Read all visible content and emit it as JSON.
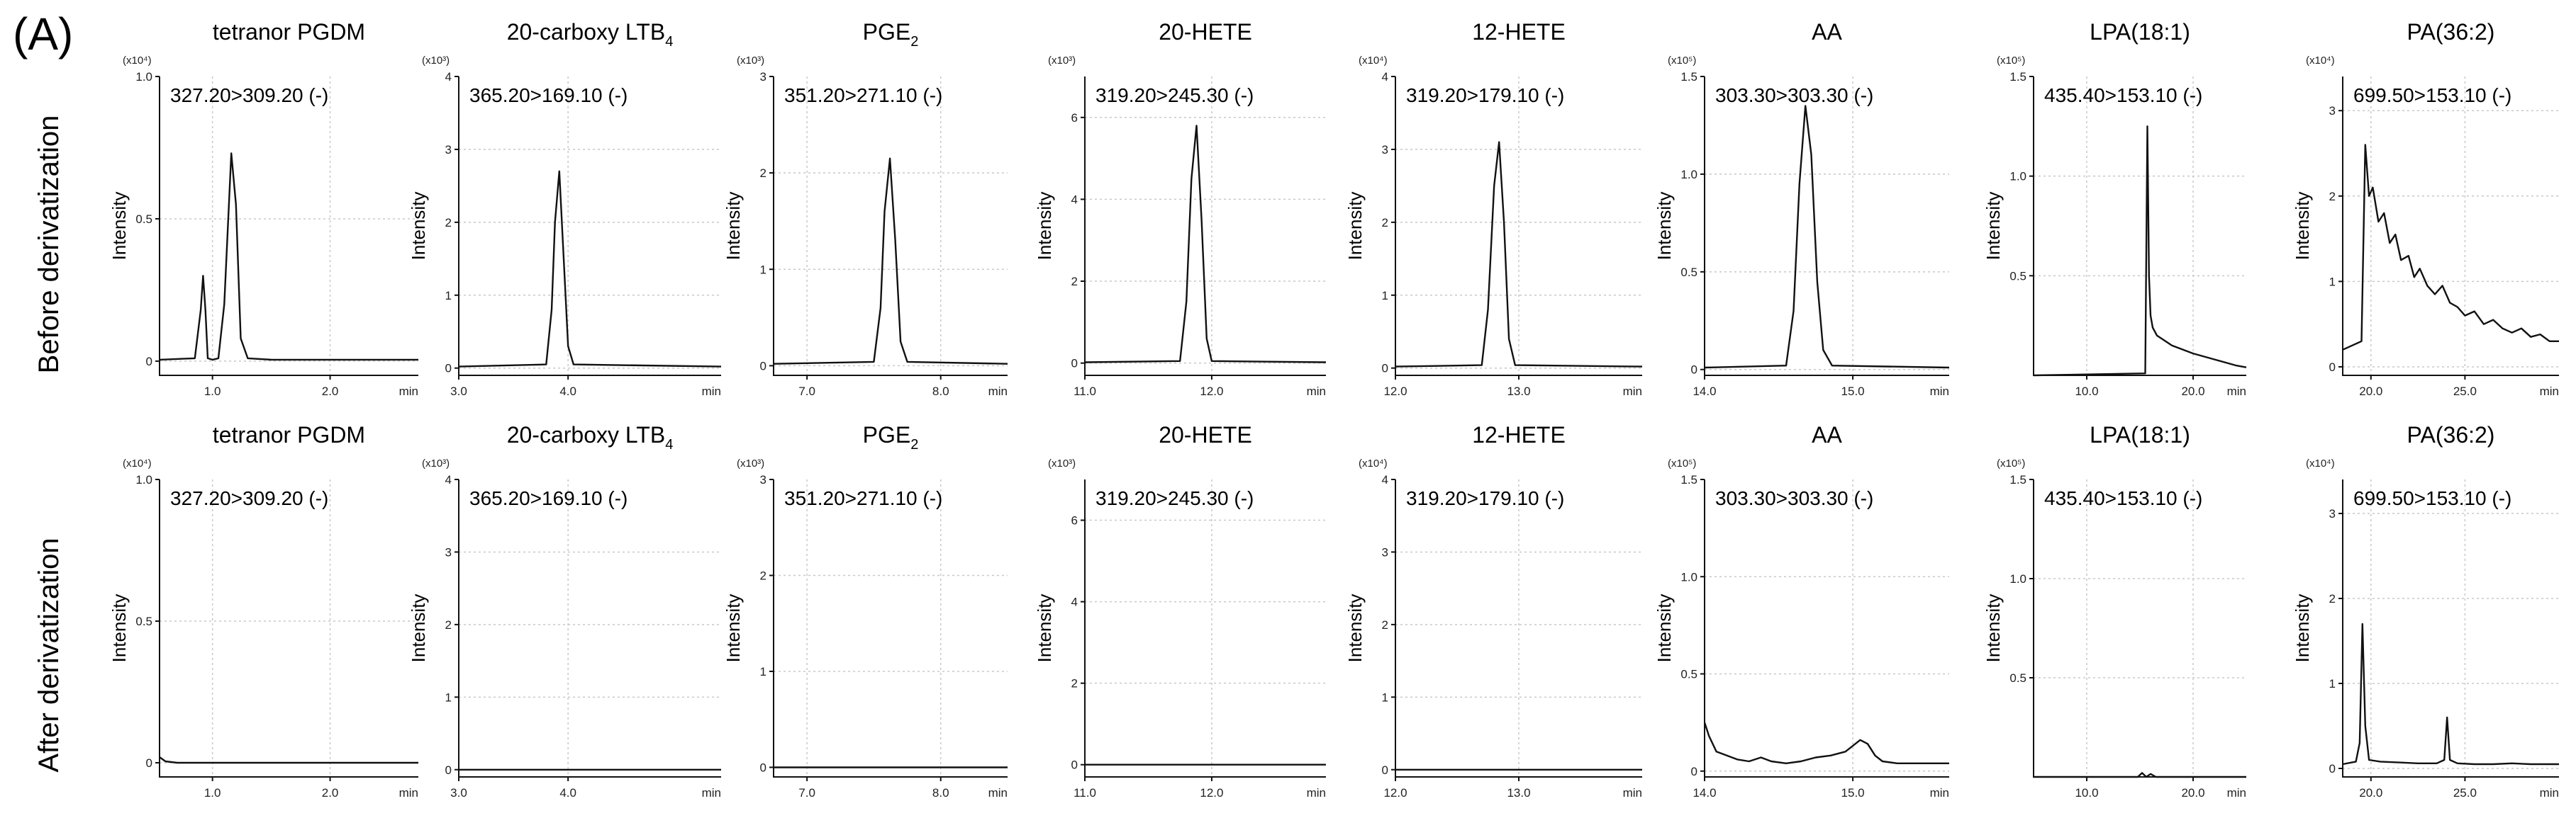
{
  "panel_label": "(A)",
  "row_labels": [
    "Before derivatization",
    "After derivatization"
  ],
  "chart_data": [
    {
      "type": "line",
      "row": 0,
      "title": "tetranor PGDM",
      "title_sub": "",
      "mrm": "327.20>309.20 (-)",
      "ylabel": "Intensity",
      "multiplier": "(x10⁴)",
      "xunit": "min",
      "x_ticks": [
        {
          "v": 1.0,
          "label": "1.0"
        },
        {
          "v": 2.0,
          "label": "2.0"
        }
      ],
      "y_ticks": [
        {
          "v": 0,
          "label": "0"
        },
        {
          "v": 0.5,
          "label": "0.5"
        },
        {
          "v": 1.0,
          "label": "1.0"
        }
      ],
      "xlim": [
        0.55,
        2.75
      ],
      "ylim": [
        -0.05,
        1.0
      ],
      "series": [
        {
          "x": [
            0.55,
            0.85,
            0.9,
            0.92,
            0.94,
            0.96,
            1.0,
            1.05,
            1.1,
            1.16,
            1.2,
            1.24,
            1.3,
            1.5,
            2.75
          ],
          "y": [
            0.005,
            0.01,
            0.18,
            0.3,
            0.18,
            0.01,
            0.005,
            0.01,
            0.2,
            0.73,
            0.55,
            0.08,
            0.01,
            0.005,
            0.005
          ]
        }
      ]
    },
    {
      "type": "line",
      "row": 0,
      "title": "20-carboxy LTB",
      "title_sub": "4",
      "mrm": "365.20>169.10 (-)",
      "ylabel": "Intensity",
      "multiplier": "(x10³)",
      "xunit": "min",
      "x_ticks": [
        {
          "v": 3.0,
          "label": "3.0"
        },
        {
          "v": 4.0,
          "label": "4.0"
        }
      ],
      "y_ticks": [
        {
          "v": 0,
          "label": "0"
        },
        {
          "v": 1,
          "label": "1"
        },
        {
          "v": 2,
          "label": "2"
        },
        {
          "v": 3,
          "label": "3"
        },
        {
          "v": 4,
          "label": "4"
        }
      ],
      "xlim": [
        3.0,
        5.4
      ],
      "ylim": [
        -0.1,
        4.0
      ],
      "series": [
        {
          "x": [
            3.0,
            3.8,
            3.85,
            3.88,
            3.92,
            3.96,
            4.0,
            4.05,
            5.4
          ],
          "y": [
            0.02,
            0.05,
            0.8,
            2.0,
            2.7,
            1.5,
            0.3,
            0.05,
            0.02
          ]
        }
      ]
    },
    {
      "type": "line",
      "row": 0,
      "title": "PGE",
      "title_sub": "2",
      "mrm": "351.20>271.10 (-)",
      "ylabel": "Intensity",
      "multiplier": "(x10³)",
      "xunit": "min",
      "x_ticks": [
        {
          "v": 7.0,
          "label": "7.0"
        },
        {
          "v": 8.0,
          "label": "8.0"
        }
      ],
      "y_ticks": [
        {
          "v": 0,
          "label": "0"
        },
        {
          "v": 1,
          "label": "1"
        },
        {
          "v": 2,
          "label": "2"
        },
        {
          "v": 3,
          "label": "3"
        }
      ],
      "xlim": [
        6.75,
        8.5
      ],
      "ylim": [
        -0.1,
        3.0
      ],
      "series": [
        {
          "x": [
            6.75,
            7.5,
            7.55,
            7.58,
            7.62,
            7.66,
            7.7,
            7.75,
            8.5
          ],
          "y": [
            0.02,
            0.04,
            0.6,
            1.6,
            2.15,
            1.3,
            0.25,
            0.04,
            0.02
          ]
        }
      ]
    },
    {
      "type": "line",
      "row": 0,
      "title": "20-HETE",
      "title_sub": "",
      "mrm": "319.20>245.30 (-)",
      "ylabel": "Intensity",
      "multiplier": "(x10³)",
      "xunit": "min",
      "x_ticks": [
        {
          "v": 11.0,
          "label": "11.0"
        },
        {
          "v": 12.0,
          "label": "12.0"
        }
      ],
      "y_ticks": [
        {
          "v": 0,
          "label": "0"
        },
        {
          "v": 2,
          "label": "2"
        },
        {
          "v": 4,
          "label": "4"
        },
        {
          "v": 6,
          "label": "6"
        }
      ],
      "xlim": [
        11.0,
        12.9
      ],
      "ylim": [
        -0.3,
        7.0
      ],
      "series": [
        {
          "x": [
            11.0,
            11.75,
            11.8,
            11.84,
            11.88,
            11.92,
            11.96,
            12.0,
            12.9
          ],
          "y": [
            0.02,
            0.05,
            1.5,
            4.5,
            5.8,
            3.5,
            0.6,
            0.05,
            0.02
          ]
        }
      ]
    },
    {
      "type": "line",
      "row": 0,
      "title": "12-HETE",
      "title_sub": "",
      "mrm": "319.20>179.10 (-)",
      "ylabel": "Intensity",
      "multiplier": "(x10⁴)",
      "xunit": "min",
      "x_ticks": [
        {
          "v": 12.0,
          "label": "12.0"
        },
        {
          "v": 13.0,
          "label": "13.0"
        }
      ],
      "y_ticks": [
        {
          "v": 0,
          "label": "0"
        },
        {
          "v": 1,
          "label": "1"
        },
        {
          "v": 2,
          "label": "2"
        },
        {
          "v": 3,
          "label": "3"
        },
        {
          "v": 4,
          "label": "4"
        }
      ],
      "xlim": [
        12.0,
        14.0
      ],
      "ylim": [
        -0.1,
        4.0
      ],
      "series": [
        {
          "x": [
            12.0,
            12.7,
            12.75,
            12.8,
            12.84,
            12.88,
            12.92,
            12.97,
            14.0
          ],
          "y": [
            0.02,
            0.04,
            0.8,
            2.5,
            3.1,
            2.0,
            0.4,
            0.04,
            0.02
          ]
        }
      ]
    },
    {
      "type": "line",
      "row": 0,
      "title": "AA",
      "title_sub": "",
      "mrm": "303.30>303.30 (-)",
      "ylabel": "Intensity",
      "multiplier": "(x10⁵)",
      "xunit": "min",
      "x_ticks": [
        {
          "v": 14.0,
          "label": "14.0"
        },
        {
          "v": 15.0,
          "label": "15.0"
        }
      ],
      "y_ticks": [
        {
          "v": 0,
          "label": "0"
        },
        {
          "v": 0.5,
          "label": "0.5"
        },
        {
          "v": 1.0,
          "label": "1.0"
        },
        {
          "v": 1.5,
          "label": "1.5"
        }
      ],
      "xlim": [
        14.0,
        15.65
      ],
      "ylim": [
        -0.03,
        1.5
      ],
      "series": [
        {
          "x": [
            14.0,
            14.55,
            14.6,
            14.64,
            14.68,
            14.72,
            14.76,
            14.8,
            14.86,
            15.65
          ],
          "y": [
            0.01,
            0.02,
            0.3,
            0.95,
            1.35,
            1.1,
            0.45,
            0.1,
            0.02,
            0.01
          ]
        }
      ]
    },
    {
      "type": "line",
      "row": 0,
      "title": "LPA(18:1)",
      "title_sub": "",
      "mrm": "435.40>153.10 (-)",
      "ylabel": "Intensity",
      "multiplier": "(x10⁵)",
      "xunit": "min",
      "x_ticks": [
        {
          "v": 10.0,
          "label": "10.0"
        },
        {
          "v": 20.0,
          "label": "20.0"
        }
      ],
      "y_ticks": [
        {
          "v": 0.5,
          "label": "0.5"
        },
        {
          "v": 1.0,
          "label": "1.0"
        },
        {
          "v": 1.5,
          "label": "1.5"
        }
      ],
      "xlim": [
        5.0,
        25.0
      ],
      "ylim": [
        0.0,
        1.5
      ],
      "series": [
        {
          "x": [
            5.0,
            15.5,
            15.7,
            15.85,
            16.0,
            16.2,
            16.6,
            18.0,
            20.0,
            22.0,
            24.0,
            25.0
          ],
          "y": [
            0.0,
            0.01,
            1.25,
            0.5,
            0.3,
            0.24,
            0.2,
            0.15,
            0.11,
            0.08,
            0.05,
            0.04
          ]
        }
      ]
    },
    {
      "type": "line",
      "row": 0,
      "title": "PA(36:2)",
      "title_sub": "",
      "mrm": "699.50>153.10 (-)",
      "ylabel": "Intensity",
      "multiplier": "(x10⁴)",
      "xunit": "min",
      "x_ticks": [
        {
          "v": 20.0,
          "label": "20.0"
        },
        {
          "v": 25.0,
          "label": "25.0"
        }
      ],
      "y_ticks": [
        {
          "v": 0,
          "label": "0"
        },
        {
          "v": 1,
          "label": "1"
        },
        {
          "v": 2,
          "label": "2"
        },
        {
          "v": 3,
          "label": "3"
        }
      ],
      "xlim": [
        18.5,
        30.0
      ],
      "ylim": [
        -0.1,
        3.4
      ],
      "series": [
        {
          "x": [
            18.5,
            19.0,
            19.5,
            19.7,
            19.9,
            20.1,
            20.4,
            20.7,
            21.0,
            21.3,
            21.6,
            22.0,
            22.3,
            22.6,
            23.0,
            23.4,
            23.8,
            24.2,
            24.6,
            25.0,
            25.5,
            26.0,
            26.5,
            27.0,
            27.5,
            28.0,
            28.5,
            29.0,
            29.5,
            30.0
          ],
          "y": [
            0.2,
            0.25,
            0.3,
            2.6,
            2.0,
            2.1,
            1.7,
            1.8,
            1.45,
            1.55,
            1.25,
            1.3,
            1.05,
            1.15,
            0.95,
            0.85,
            0.95,
            0.75,
            0.7,
            0.6,
            0.65,
            0.5,
            0.55,
            0.45,
            0.4,
            0.45,
            0.35,
            0.38,
            0.3,
            0.3
          ]
        }
      ]
    },
    {
      "type": "line",
      "row": 1,
      "title": "tetranor PGDM",
      "title_sub": "",
      "mrm": "327.20>309.20 (-)",
      "ylabel": "Intensity",
      "multiplier": "(x10⁴)",
      "xunit": "min",
      "x_ticks": [
        {
          "v": 1.0,
          "label": "1.0"
        },
        {
          "v": 2.0,
          "label": "2.0"
        }
      ],
      "y_ticks": [
        {
          "v": 0,
          "label": "0"
        },
        {
          "v": 0.5,
          "label": "0.5"
        },
        {
          "v": 1.0,
          "label": "1.0"
        }
      ],
      "xlim": [
        0.55,
        2.75
      ],
      "ylim": [
        -0.05,
        1.0
      ],
      "series": [
        {
          "x": [
            0.55,
            0.6,
            0.7,
            2.75
          ],
          "y": [
            0.02,
            0.005,
            0.0,
            0.0
          ]
        }
      ]
    },
    {
      "type": "line",
      "row": 1,
      "title": "20-carboxy LTB",
      "title_sub": "4",
      "mrm": "365.20>169.10 (-)",
      "ylabel": "Intensity",
      "multiplier": "(x10³)",
      "xunit": "min",
      "x_ticks": [
        {
          "v": 3.0,
          "label": "3.0"
        },
        {
          "v": 4.0,
          "label": "4.0"
        }
      ],
      "y_ticks": [
        {
          "v": 0,
          "label": "0"
        },
        {
          "v": 1,
          "label": "1"
        },
        {
          "v": 2,
          "label": "2"
        },
        {
          "v": 3,
          "label": "3"
        },
        {
          "v": 4,
          "label": "4"
        }
      ],
      "xlim": [
        3.0,
        5.4
      ],
      "ylim": [
        -0.1,
        4.0
      ],
      "series": [
        {
          "x": [
            3.0,
            5.4
          ],
          "y": [
            0.0,
            0.0
          ]
        }
      ]
    },
    {
      "type": "line",
      "row": 1,
      "title": "PGE",
      "title_sub": "2",
      "mrm": "351.20>271.10 (-)",
      "ylabel": "Intensity",
      "multiplier": "(x10³)",
      "xunit": "min",
      "x_ticks": [
        {
          "v": 7.0,
          "label": "7.0"
        },
        {
          "v": 8.0,
          "label": "8.0"
        }
      ],
      "y_ticks": [
        {
          "v": 0,
          "label": "0"
        },
        {
          "v": 1,
          "label": "1"
        },
        {
          "v": 2,
          "label": "2"
        },
        {
          "v": 3,
          "label": "3"
        }
      ],
      "xlim": [
        6.75,
        8.5
      ],
      "ylim": [
        -0.1,
        3.0
      ],
      "series": [
        {
          "x": [
            6.75,
            8.5
          ],
          "y": [
            0.0,
            0.0
          ]
        }
      ]
    },
    {
      "type": "line",
      "row": 1,
      "title": "20-HETE",
      "title_sub": "",
      "mrm": "319.20>245.30 (-)",
      "ylabel": "Intensity",
      "multiplier": "(x10³)",
      "xunit": "min",
      "x_ticks": [
        {
          "v": 11.0,
          "label": "11.0"
        },
        {
          "v": 12.0,
          "label": "12.0"
        }
      ],
      "y_ticks": [
        {
          "v": 0,
          "label": "0"
        },
        {
          "v": 2,
          "label": "2"
        },
        {
          "v": 4,
          "label": "4"
        },
        {
          "v": 6,
          "label": "6"
        }
      ],
      "xlim": [
        11.0,
        12.9
      ],
      "ylim": [
        -0.3,
        7.0
      ],
      "series": [
        {
          "x": [
            11.0,
            12.9
          ],
          "y": [
            0.0,
            0.0
          ]
        }
      ]
    },
    {
      "type": "line",
      "row": 1,
      "title": "12-HETE",
      "title_sub": "",
      "mrm": "319.20>179.10 (-)",
      "ylabel": "Intensity",
      "multiplier": "(x10⁴)",
      "xunit": "min",
      "x_ticks": [
        {
          "v": 12.0,
          "label": "12.0"
        },
        {
          "v": 13.0,
          "label": "13.0"
        }
      ],
      "y_ticks": [
        {
          "v": 0,
          "label": "0"
        },
        {
          "v": 1,
          "label": "1"
        },
        {
          "v": 2,
          "label": "2"
        },
        {
          "v": 3,
          "label": "3"
        },
        {
          "v": 4,
          "label": "4"
        }
      ],
      "xlim": [
        12.0,
        14.0
      ],
      "ylim": [
        -0.1,
        4.0
      ],
      "series": [
        {
          "x": [
            12.0,
            14.0
          ],
          "y": [
            0.0,
            0.0
          ]
        }
      ]
    },
    {
      "type": "line",
      "row": 1,
      "title": "AA",
      "title_sub": "",
      "mrm": "303.30>303.30 (-)",
      "ylabel": "Intensity",
      "multiplier": "(x10⁵)",
      "xunit": "min",
      "x_ticks": [
        {
          "v": 14.0,
          "label": "14.0"
        },
        {
          "v": 15.0,
          "label": "15.0"
        }
      ],
      "y_ticks": [
        {
          "v": 0,
          "label": "0"
        },
        {
          "v": 0.5,
          "label": "0.5"
        },
        {
          "v": 1.0,
          "label": "1.0"
        },
        {
          "v": 1.5,
          "label": "1.5"
        }
      ],
      "xlim": [
        14.0,
        15.65
      ],
      "ylim": [
        -0.03,
        1.5
      ],
      "series": [
        {
          "x": [
            14.0,
            14.03,
            14.08,
            14.15,
            14.22,
            14.3,
            14.38,
            14.45,
            14.55,
            14.65,
            14.75,
            14.85,
            14.95,
            15.0,
            15.05,
            15.1,
            15.15,
            15.2,
            15.3,
            15.4,
            15.5,
            15.65
          ],
          "y": [
            0.25,
            0.18,
            0.1,
            0.08,
            0.06,
            0.05,
            0.07,
            0.05,
            0.04,
            0.05,
            0.07,
            0.08,
            0.1,
            0.13,
            0.16,
            0.14,
            0.08,
            0.05,
            0.04,
            0.04,
            0.04,
            0.04
          ]
        }
      ]
    },
    {
      "type": "line",
      "row": 1,
      "title": "LPA(18:1)",
      "title_sub": "",
      "mrm": "435.40>153.10 (-)",
      "ylabel": "Intensity",
      "multiplier": "(x10⁵)",
      "xunit": "min",
      "x_ticks": [
        {
          "v": 10.0,
          "label": "10.0"
        },
        {
          "v": 20.0,
          "label": "20.0"
        }
      ],
      "y_ticks": [
        {
          "v": 0.5,
          "label": "0.5"
        },
        {
          "v": 1.0,
          "label": "1.0"
        },
        {
          "v": 1.5,
          "label": "1.5"
        }
      ],
      "xlim": [
        5.0,
        25.0
      ],
      "ylim": [
        0.0,
        1.5
      ],
      "series": [
        {
          "x": [
            5.0,
            14.8,
            15.2,
            15.6,
            16.0,
            16.5,
            25.0
          ],
          "y": [
            0.0,
            0.0,
            0.02,
            0.0,
            0.015,
            0.0,
            0.0
          ]
        }
      ]
    },
    {
      "type": "line",
      "row": 1,
      "title": "PA(36:2)",
      "title_sub": "",
      "mrm": "699.50>153.10 (-)",
      "ylabel": "Intensity",
      "multiplier": "(x10⁴)",
      "xunit": "min",
      "x_ticks": [
        {
          "v": 20.0,
          "label": "20.0"
        },
        {
          "v": 25.0,
          "label": "25.0"
        }
      ],
      "y_ticks": [
        {
          "v": 0,
          "label": "0"
        },
        {
          "v": 1,
          "label": "1"
        },
        {
          "v": 2,
          "label": "2"
        },
        {
          "v": 3,
          "label": "3"
        }
      ],
      "xlim": [
        18.5,
        30.0
      ],
      "ylim": [
        -0.1,
        3.4
      ],
      "series": [
        {
          "x": [
            18.5,
            19.2,
            19.4,
            19.55,
            19.7,
            19.9,
            20.5,
            21.5,
            22.5,
            23.5,
            23.9,
            24.05,
            24.2,
            24.6,
            25.5,
            26.5,
            27.5,
            28.5,
            29.5,
            30.0
          ],
          "y": [
            0.05,
            0.08,
            0.3,
            1.7,
            0.5,
            0.1,
            0.08,
            0.07,
            0.06,
            0.06,
            0.1,
            0.6,
            0.1,
            0.06,
            0.05,
            0.05,
            0.06,
            0.05,
            0.05,
            0.05
          ]
        }
      ]
    }
  ]
}
